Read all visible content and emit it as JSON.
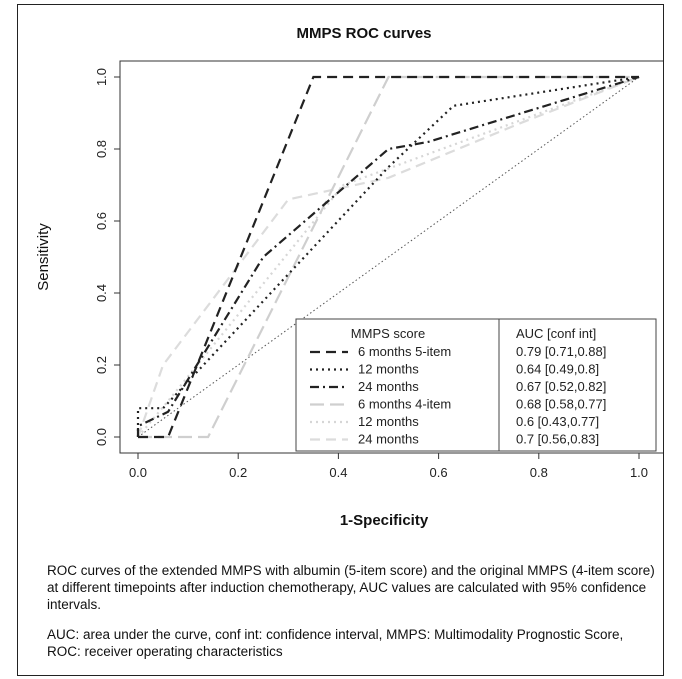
{
  "chart_data": {
    "type": "line",
    "title": "MMPS ROC curves",
    "xlabel": "1-Specificity",
    "ylabel": "Sensitivity",
    "xlim": [
      0,
      1
    ],
    "ylim": [
      0,
      1
    ],
    "x_ticks": [
      "0.0",
      "0.2",
      "0.4",
      "0.6",
      "0.8",
      "1.0"
    ],
    "y_ticks": [
      "0.0",
      "0.2",
      "0.4",
      "0.6",
      "0.8",
      "1.0"
    ],
    "grid": false,
    "legend": {
      "placement": "bottom-right",
      "title": "MMPS score",
      "auc_header": "AUC  [conf int]"
    },
    "series": [
      {
        "name": "6 months 5-item",
        "auc": "0.79  [0.71,0.88]",
        "color": "#222222",
        "dash": "dashed",
        "x": [
          0,
          0.06,
          0.35,
          1.0
        ],
        "y": [
          0,
          0,
          1.0,
          1.0
        ]
      },
      {
        "name": "12 months",
        "auc": "0.64  [0.49,0.8]",
        "color": "#222222",
        "dash": "dotted",
        "x": [
          0,
          0,
          0.05,
          0.5,
          0.63,
          1.0
        ],
        "y": [
          0,
          0.08,
          0.08,
          0.75,
          0.92,
          1.0
        ]
      },
      {
        "name": "24 months",
        "auc": "0.67  [0.52,0.82]",
        "color": "#222222",
        "dash": "dotdash",
        "x": [
          0,
          0,
          0.06,
          0.25,
          0.5,
          0.58,
          1.0
        ],
        "y": [
          0,
          0.03,
          0.07,
          0.5,
          0.8,
          0.82,
          1.0
        ]
      },
      {
        "name": "6 months 4-item",
        "auc": "0.68  [0.58,0.77]",
        "color": "#cfcfcf",
        "dash": "longdash",
        "x": [
          0,
          0.14,
          0.5,
          0.5,
          1.0
        ],
        "y": [
          0,
          0,
          1.0,
          1.0,
          1.0
        ]
      },
      {
        "name": "12 months",
        "auc": "0.6  [0.43,0.77]",
        "color": "#d6d6d6",
        "dash": "dotted",
        "x": [
          0,
          0.06,
          0.41,
          1.0
        ],
        "y": [
          0,
          0.1,
          0.7,
          1.0
        ]
      },
      {
        "name": "24 months",
        "auc": "0.7  [0.56,0.83]",
        "color": "#dcdcdc",
        "dash": "dashed",
        "x": [
          0,
          0.05,
          0.3,
          0.5,
          0.76,
          1.0
        ],
        "y": [
          0,
          0.2,
          0.66,
          0.72,
          0.87,
          1.0
        ]
      }
    ],
    "reference_line": {
      "x": [
        0,
        1
      ],
      "y": [
        0,
        1
      ],
      "color": "#555555",
      "dash": "dotted"
    }
  },
  "caption": {
    "main": "ROC curves of the extended MMPS with albumin (5-item score) and the original MMPS (4-item score) at different timepoints after induction chemotherapy, AUC values are calculated with 95% confidence intervals.",
    "abbreviations": "AUC: area under the curve, conf int: confidence interval, MMPS: Multimodality Prognostic Score, ROC: receiver operating characteristics"
  }
}
